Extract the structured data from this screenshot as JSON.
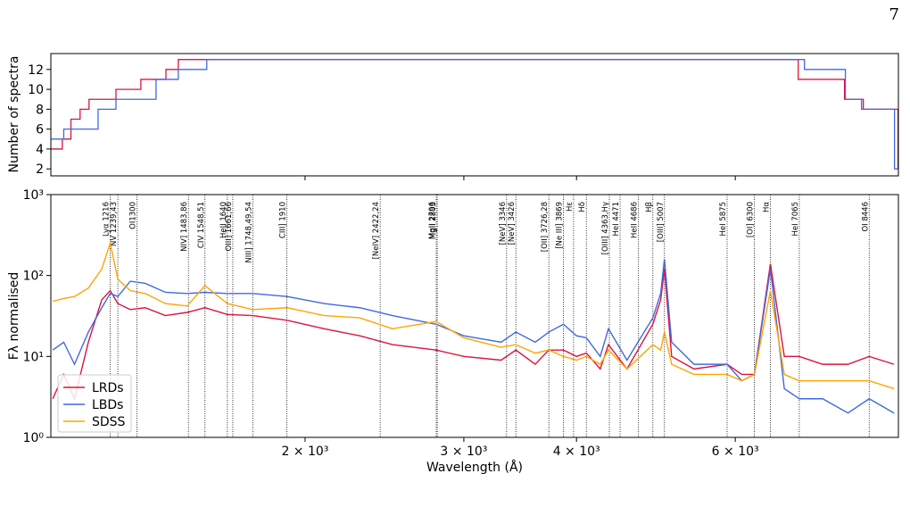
{
  "page_number": "7",
  "chart_data": [
    {
      "type": "step",
      "ylabel": "Number of spectra",
      "xscale": "log",
      "xlim": [
        1045,
        9100
      ],
      "ylim": [
        1.3,
        13.6
      ],
      "yticks": [
        2,
        4,
        6,
        8,
        10,
        12
      ],
      "series": [
        {
          "color": "#dc143c",
          "x": [
            1045,
            1076,
            1100,
            1126,
            1152,
            1234,
            1315,
            1402,
            1447,
            7046,
            7930,
            8320,
            9090
          ],
          "values": [
            4,
            5,
            7,
            8,
            9,
            10,
            11,
            12,
            13,
            11,
            9,
            8,
            2
          ]
        },
        {
          "color": "#4169e1",
          "x": [
            1045,
            1080,
            1179,
            1234,
            1367,
            1447,
            1556,
            7159,
            7948,
            8282,
            9010
          ],
          "values": [
            5,
            6,
            8,
            9,
            11,
            12,
            13,
            12,
            9,
            8,
            2
          ]
        }
      ]
    },
    {
      "type": "line",
      "xlabel": "Wavelength (Å)",
      "ylabel": "Fλ normalised",
      "xscale": "log",
      "yscale": "log",
      "legend": "lower left",
      "xlim": [
        1045,
        9100
      ],
      "ylim": [
        1,
        1000
      ],
      "xticks": [
        {
          "value": 2000,
          "label": "2 × 10³"
        },
        {
          "value": 3000,
          "label": "3 × 10³"
        },
        {
          "value": 4000,
          "label": "4 × 10³"
        },
        {
          "value": 6000,
          "label": "6 × 10³"
        }
      ],
      "yticks": [
        {
          "value": 1,
          "label": "10⁰"
        },
        {
          "value": 10,
          "label": "10¹"
        },
        {
          "value": 100,
          "label": "10²"
        },
        {
          "value": 1000,
          "label": "10³"
        }
      ],
      "x": [
        1050,
        1080,
        1110,
        1150,
        1190,
        1216,
        1240,
        1280,
        1330,
        1400,
        1480,
        1549,
        1640,
        1750,
        1910,
        2100,
        2300,
        2500,
        2796,
        3000,
        3300,
        3426,
        3600,
        3727,
        3869,
        4000,
        4102,
        4250,
        4340,
        4550,
        4861,
        4959,
        5007,
        5100,
        5400,
        5876,
        6100,
        6300,
        6563,
        6800,
        7065,
        7500,
        8000,
        8446,
        9000
      ],
      "series": [
        {
          "name": "LRDs",
          "color": "#dc143c",
          "values": [
            3,
            6,
            3,
            15,
            50,
            65,
            45,
            38,
            40,
            32,
            35,
            40,
            33,
            32,
            28,
            22,
            18,
            14,
            12,
            10,
            9,
            12,
            8,
            12,
            12,
            10,
            11,
            7,
            14,
            7,
            25,
            50,
            120,
            10,
            7,
            8,
            6,
            6,
            140,
            10,
            10,
            8,
            8,
            10,
            8
          ]
        },
        {
          "name": "LBDs",
          "color": "#4169e1",
          "values": [
            12,
            15,
            8,
            20,
            40,
            60,
            55,
            85,
            80,
            62,
            60,
            62,
            60,
            60,
            55,
            45,
            40,
            32,
            25,
            18,
            15,
            20,
            15,
            20,
            25,
            18,
            17,
            10,
            22,
            9,
            30,
            60,
            160,
            15,
            8,
            8,
            5,
            6,
            120,
            4,
            3,
            3,
            2,
            3,
            2
          ]
        },
        {
          "name": "SDSS",
          "color": "#ffa500",
          "values": [
            48,
            52,
            55,
            70,
            120,
            250,
            90,
            65,
            60,
            45,
            42,
            75,
            45,
            38,
            40,
            32,
            30,
            22,
            27,
            17,
            13,
            14,
            11,
            12,
            10,
            9,
            10,
            8,
            12,
            7,
            14,
            12,
            20,
            8,
            6,
            6,
            5,
            6,
            65,
            6,
            5,
            5,
            5,
            5,
            4
          ]
        }
      ],
      "annotations": [
        {
          "value": 1216,
          "label": "Lyα 1216"
        },
        {
          "value": 1240,
          "label": "NV 1239,43"
        },
        {
          "value": 1302,
          "label": "OI1300"
        },
        {
          "value": 1485,
          "label": "NIV] 1483,86"
        },
        {
          "value": 1549,
          "label": "CIV 1548,51"
        },
        {
          "value": 1640,
          "label": "HeII 1640"
        },
        {
          "value": 1663,
          "label": "OIII] 1661,66"
        },
        {
          "value": 1750,
          "label": "NIII] 1748,49,54"
        },
        {
          "value": 1909,
          "label": "CIII] 1910"
        },
        {
          "value": 2423,
          "label": "[NeIV] 2422,24"
        },
        {
          "value": 2796,
          "label": "MgII 2796"
        },
        {
          "value": 2803,
          "label": "MgII 2803"
        },
        {
          "value": 3346,
          "label": "[NeV] 3346"
        },
        {
          "value": 3426,
          "label": "[NeV] 3426"
        },
        {
          "value": 3727,
          "label": "[OII] 3726,28"
        },
        {
          "value": 3869,
          "label": "[Ne III] 3869"
        },
        {
          "value": 3970,
          "label": "Hε"
        },
        {
          "value": 4102,
          "label": "Hδ"
        },
        {
          "value": 4350,
          "label": "[OIII] 4363,Hγ"
        },
        {
          "value": 4471,
          "label": "HeI 4471"
        },
        {
          "value": 4686,
          "label": "HeII 4686"
        },
        {
          "value": 4861,
          "label": "Hβ"
        },
        {
          "value": 5007,
          "label": "[OIII] 5007"
        },
        {
          "value": 5876,
          "label": "HeI 5875"
        },
        {
          "value": 6300,
          "label": "[OI] 6300"
        },
        {
          "value": 6563,
          "label": "Hα"
        },
        {
          "value": 7065,
          "label": "HeI 7065"
        },
        {
          "value": 8446,
          "label": "OI 8446"
        }
      ]
    }
  ]
}
